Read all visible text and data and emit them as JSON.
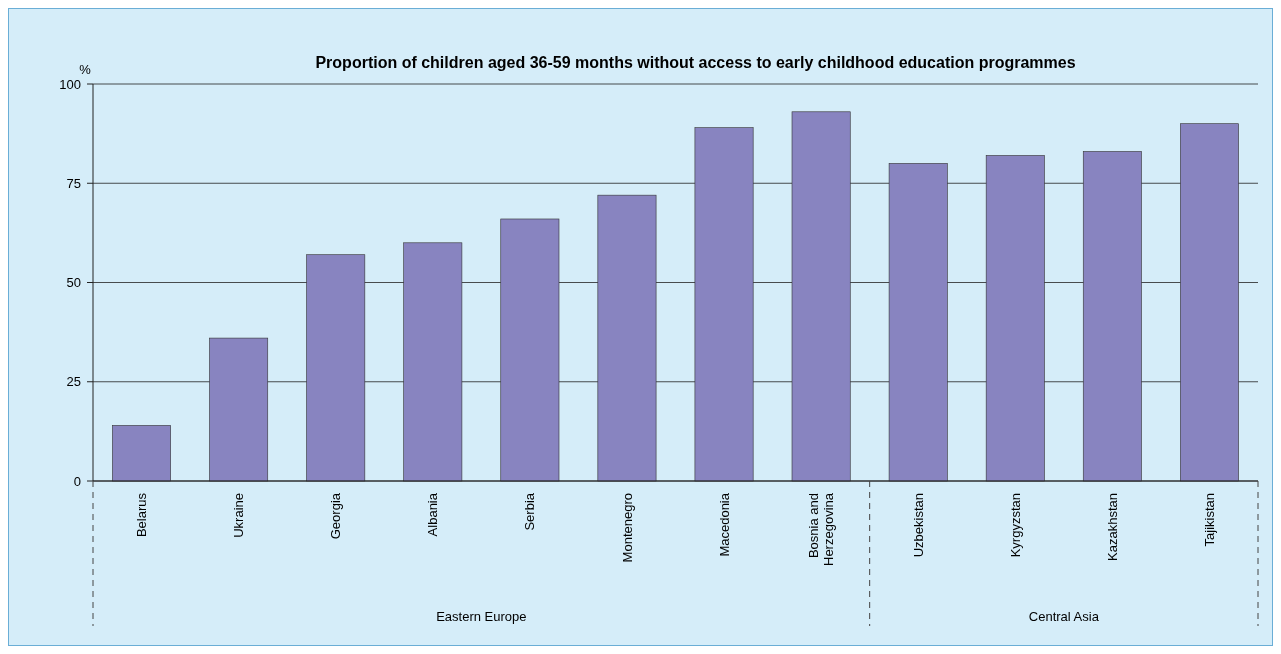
{
  "chart_data": {
    "type": "bar",
    "title": "Proportion of children aged 36-59 months without access to early childhood education programmes",
    "ylabel": "%",
    "categories": [
      "Belarus",
      "Ukraine",
      "Georgia",
      "Albania",
      "Serbia",
      "Montenegro",
      "Macedonia",
      "Bosnia and Herzegovina",
      "Uzbekistan",
      "Kyrgyzstan",
      "Kazakhstan",
      "Tajikistan"
    ],
    "values": [
      14,
      36,
      57,
      60,
      66,
      72,
      89,
      93,
      80,
      82,
      83,
      90
    ],
    "color": "#8884c0",
    "ylim": [
      0,
      100
    ],
    "yticks": [
      0,
      25,
      50,
      75,
      100
    ],
    "grid": "y",
    "annotations": [
      "Eastern Europe",
      "Central Asia"
    ]
  }
}
